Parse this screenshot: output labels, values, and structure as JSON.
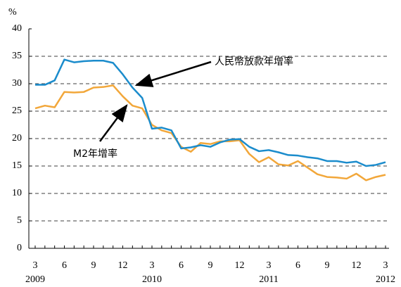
{
  "chart_data": {
    "type": "line",
    "y_label": "%",
    "categories": [
      "3",
      null,
      null,
      "6",
      null,
      null,
      "9",
      null,
      null,
      "12",
      null,
      null,
      "3",
      null,
      null,
      "6",
      null,
      null,
      "9",
      null,
      null,
      "12",
      null,
      null,
      "3",
      null,
      null,
      "6",
      null,
      null,
      "9",
      null,
      null,
      "12",
      null,
      null,
      "3"
    ],
    "category_years": [
      "2009",
      null,
      null,
      null,
      null,
      null,
      null,
      null,
      null,
      null,
      null,
      null,
      "2010",
      null,
      null,
      null,
      null,
      null,
      null,
      null,
      null,
      null,
      null,
      null,
      "2011",
      null,
      null,
      null,
      null,
      null,
      null,
      null,
      null,
      null,
      null,
      null,
      "2012"
    ],
    "series": [
      {
        "name": "人民幣放款年增率",
        "color": "#1b8ccc",
        "values": [
          29.8,
          29.8,
          30.6,
          34.4,
          33.9,
          34.1,
          34.2,
          34.2,
          33.8,
          31.7,
          29.3,
          27.4,
          21.8,
          22.0,
          21.5,
          18.2,
          18.4,
          18.8,
          18.5,
          19.3,
          19.8,
          19.9,
          18.5,
          17.7,
          17.9,
          17.5,
          17.0,
          16.9,
          16.6,
          16.4,
          15.9,
          15.9,
          15.6,
          15.8,
          15.0,
          15.2,
          15.7
        ]
      },
      {
        "name": "M2年增率",
        "color": "#f2a73a",
        "values": [
          25.5,
          26.0,
          25.7,
          28.5,
          28.4,
          28.5,
          29.3,
          29.4,
          29.7,
          27.7,
          26.0,
          25.5,
          22.5,
          21.5,
          21.0,
          18.5,
          17.6,
          19.2,
          19.0,
          19.5,
          19.5,
          19.7,
          17.2,
          15.7,
          16.6,
          15.3,
          15.1,
          15.9,
          14.7,
          13.5,
          13.0,
          12.9,
          12.7,
          13.6,
          12.4,
          13.0,
          13.4
        ]
      }
    ],
    "ylim": [
      0,
      40
    ],
    "yticks": [
      0,
      5,
      10,
      15,
      20,
      25,
      30,
      35,
      40
    ],
    "grid": true
  }
}
